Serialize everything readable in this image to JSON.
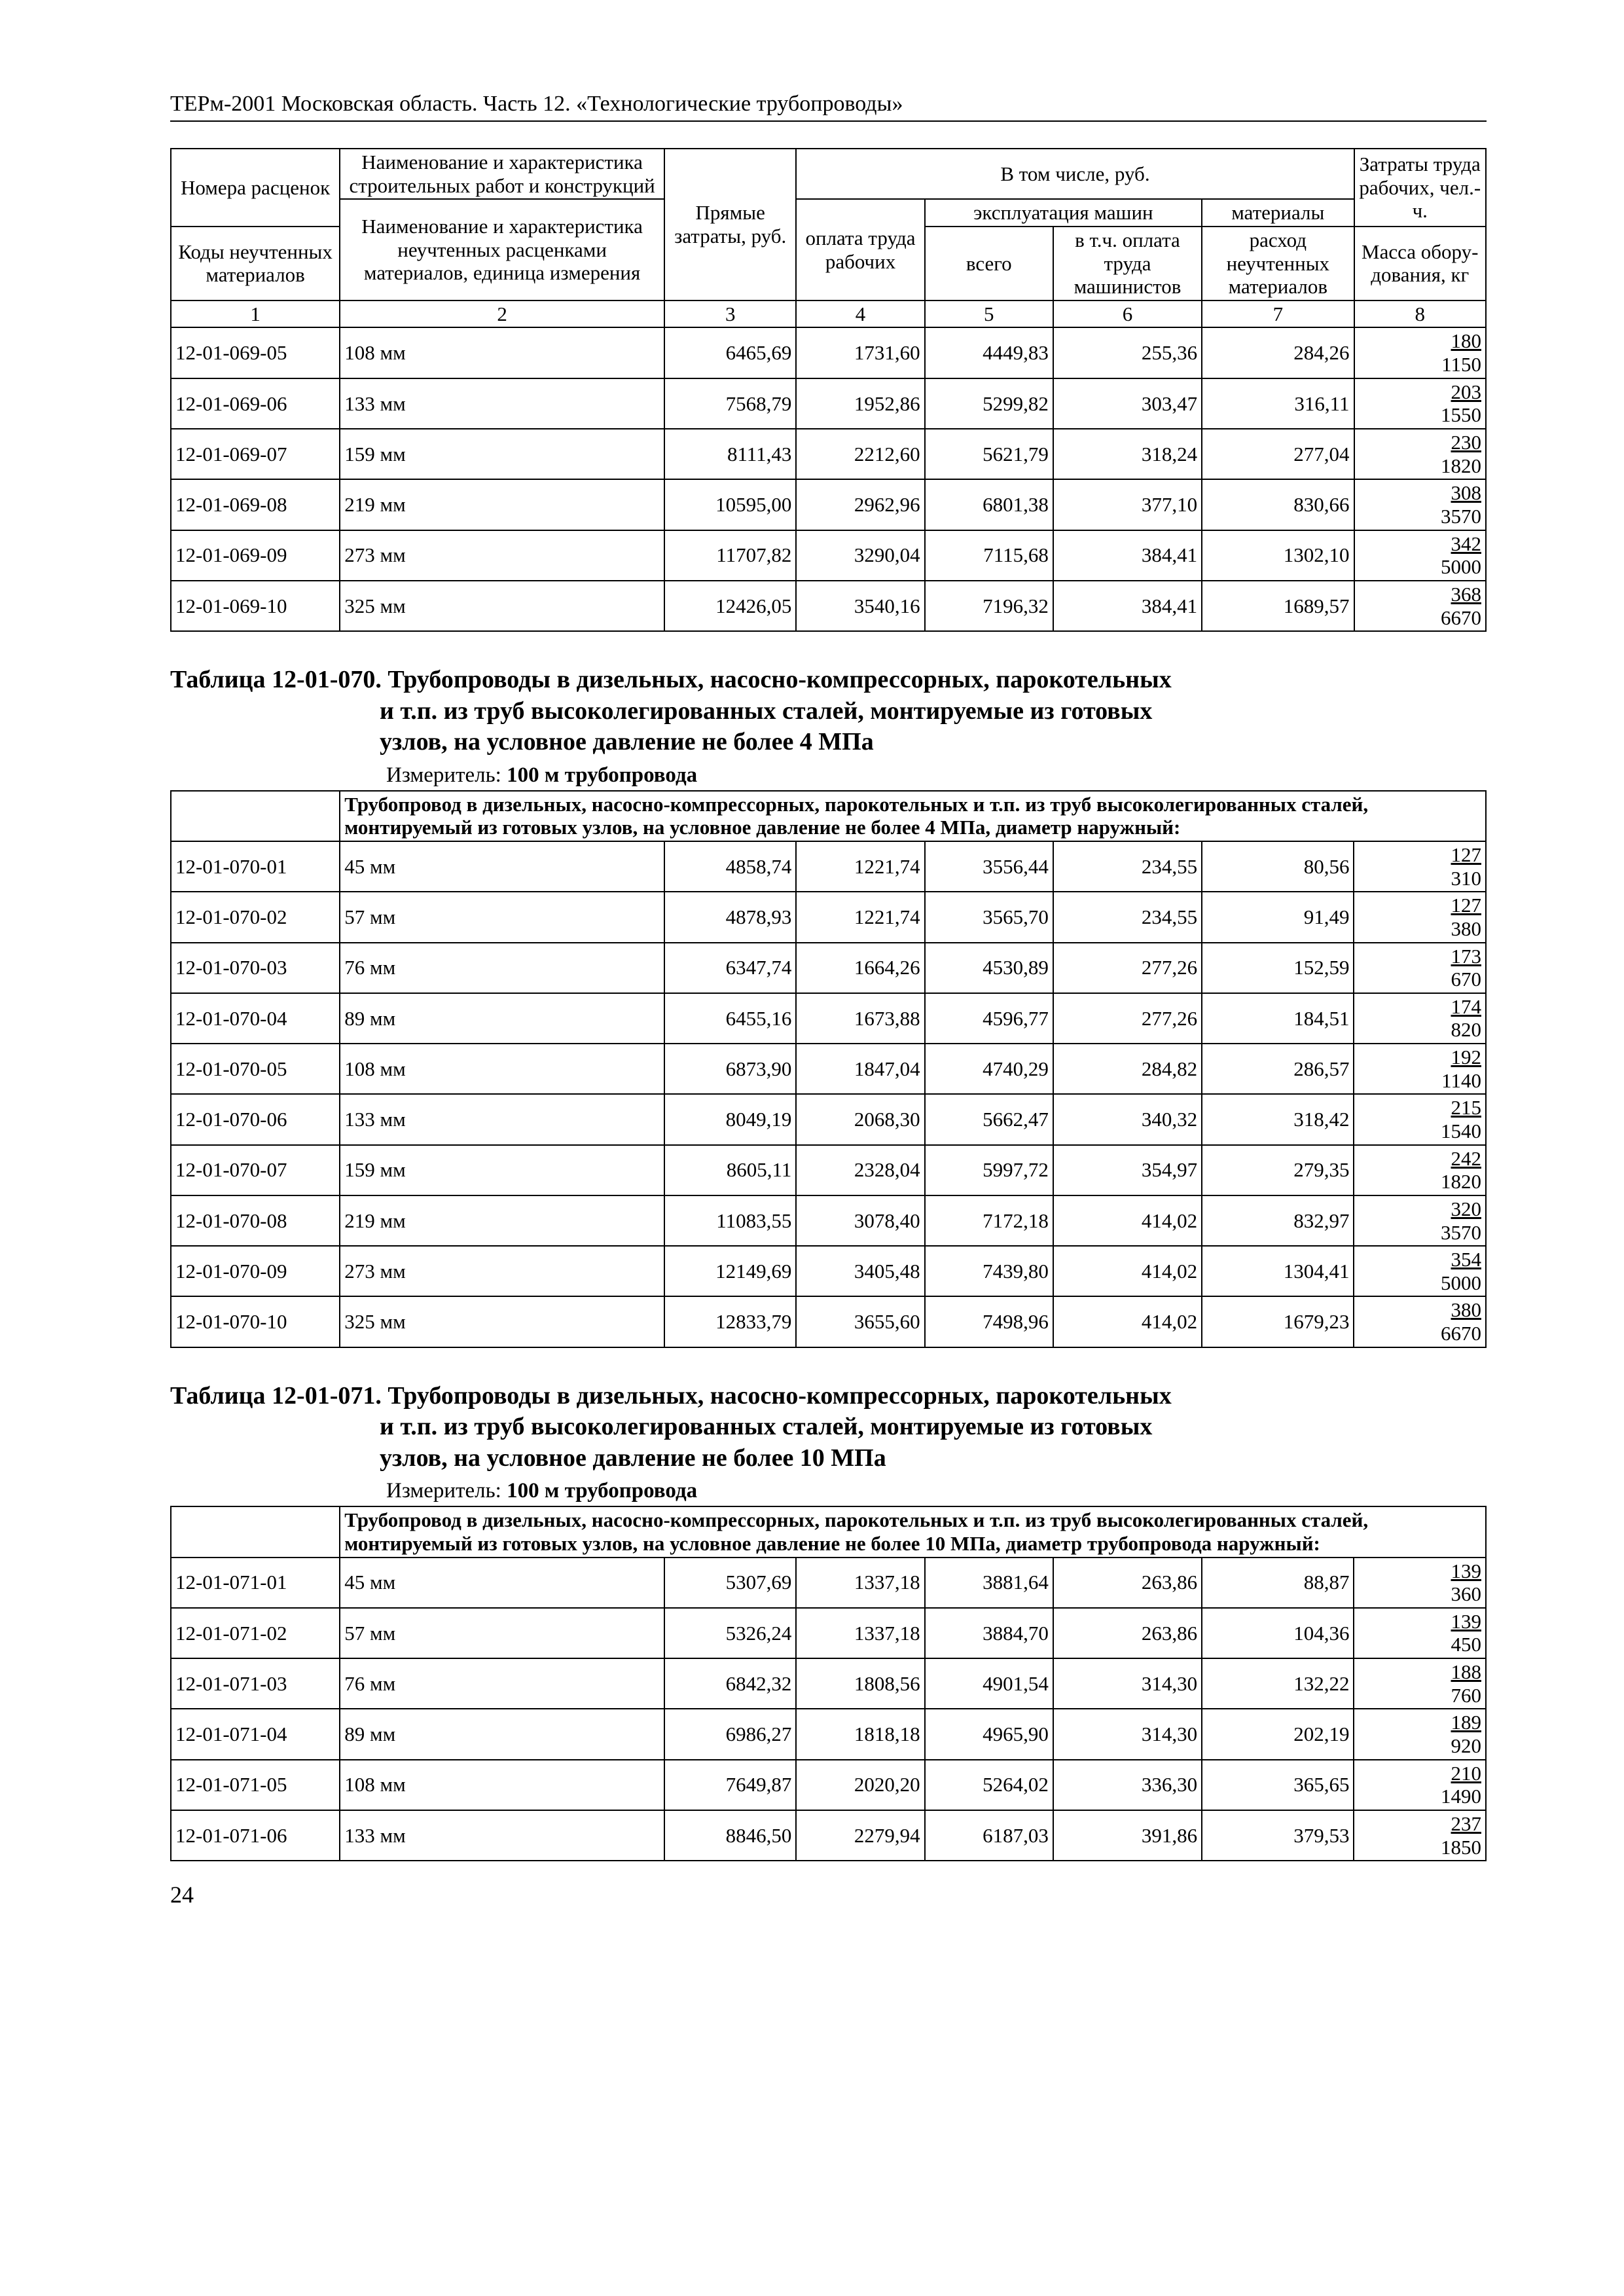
{
  "page": {
    "running_header": "ТЕРм-2001 Московская область. Часть 12. «Технологические трубопроводы»",
    "page_number": "24"
  },
  "header": {
    "h_code_top": "Номера расценок",
    "h_name_top": "Наименование и характеристика строительных работ и конструкций",
    "h_code_bot": "Коды неучтенных материалов",
    "h_name_bot": "Наименование и характеристика неучтенных расценками материалов, единица измерения",
    "h_direct": "Прямые затраты, руб.",
    "h_incl": "В том числе, руб.",
    "h_labor_pay": "оплата труда рабочих",
    "h_mach": "эксплуатация машин",
    "h_total": "всего",
    "h_mach_lab": "в т.ч. оплата труда машинистов",
    "h_mat": "материалы",
    "h_mat_un": "расход неучтенных материалов",
    "h_labor_top": "Затраты труда рабочих, чел.-ч.",
    "h_mass": "Масса обору- дования, кг",
    "col1": "1",
    "col2": "2",
    "col3": "3",
    "col4": "4",
    "col5": "5",
    "col6": "6",
    "col7": "7",
    "col8": "8"
  },
  "table069": {
    "rows": [
      {
        "code": "12-01-069-05",
        "name": "108 мм",
        "c3": "6465,69",
        "c4": "1731,60",
        "c5": "4449,83",
        "c6": "255,36",
        "c7": "284,26",
        "t": "180",
        "b": "1150"
      },
      {
        "code": "12-01-069-06",
        "name": "133 мм",
        "c3": "7568,79",
        "c4": "1952,86",
        "c5": "5299,82",
        "c6": "303,47",
        "c7": "316,11",
        "t": "203",
        "b": "1550"
      },
      {
        "code": "12-01-069-07",
        "name": "159 мм",
        "c3": "8111,43",
        "c4": "2212,60",
        "c5": "5621,79",
        "c6": "318,24",
        "c7": "277,04",
        "t": "230",
        "b": "1820"
      },
      {
        "code": "12-01-069-08",
        "name": "219 мм",
        "c3": "10595,00",
        "c4": "2962,96",
        "c5": "6801,38",
        "c6": "377,10",
        "c7": "830,66",
        "t": "308",
        "b": "3570"
      },
      {
        "code": "12-01-069-09",
        "name": "273 мм",
        "c3": "11707,82",
        "c4": "3290,04",
        "c5": "7115,68",
        "c6": "384,41",
        "c7": "1302,10",
        "t": "342",
        "b": "5000"
      },
      {
        "code": "12-01-069-10",
        "name": "325 мм",
        "c3": "12426,05",
        "c4": "3540,16",
        "c5": "7196,32",
        "c6": "384,41",
        "c7": "1689,57",
        "t": "368",
        "b": "6670"
      }
    ]
  },
  "sec070": {
    "title_first": "Таблица 12-01-070. Трубопроводы в дизельных, насосно-компрессорных, парокотельных",
    "title_rest1": "и т.п. из труб высоколегированных сталей, монтируемые из готовых",
    "title_rest2": "узлов, на условное давление не более 4 МПа",
    "measure_label": "Измеритель:",
    "measure_value": "100 м трубопровода",
    "desc": "Трубопровод в дизельных, насосно-компрессорных, парокотельных и т.п. из труб высоколегированных сталей, монтируемый из готовых узлов, на условное давление не более 4 МПа, диаметр наружный:",
    "rows": [
      {
        "code": "12-01-070-01",
        "name": "45 мм",
        "c3": "4858,74",
        "c4": "1221,74",
        "c5": "3556,44",
        "c6": "234,55",
        "c7": "80,56",
        "t": "127",
        "b": "310"
      },
      {
        "code": "12-01-070-02",
        "name": "57 мм",
        "c3": "4878,93",
        "c4": "1221,74",
        "c5": "3565,70",
        "c6": "234,55",
        "c7": "91,49",
        "t": "127",
        "b": "380"
      },
      {
        "code": "12-01-070-03",
        "name": "76 мм",
        "c3": "6347,74",
        "c4": "1664,26",
        "c5": "4530,89",
        "c6": "277,26",
        "c7": "152,59",
        "t": "173",
        "b": "670"
      },
      {
        "code": "12-01-070-04",
        "name": "89 мм",
        "c3": "6455,16",
        "c4": "1673,88",
        "c5": "4596,77",
        "c6": "277,26",
        "c7": "184,51",
        "t": "174",
        "b": "820"
      },
      {
        "code": "12-01-070-05",
        "name": "108 мм",
        "c3": "6873,90",
        "c4": "1847,04",
        "c5": "4740,29",
        "c6": "284,82",
        "c7": "286,57",
        "t": "192",
        "b": "1140"
      },
      {
        "code": "12-01-070-06",
        "name": "133 мм",
        "c3": "8049,19",
        "c4": "2068,30",
        "c5": "5662,47",
        "c6": "340,32",
        "c7": "318,42",
        "t": "215",
        "b": "1540"
      },
      {
        "code": "12-01-070-07",
        "name": "159 мм",
        "c3": "8605,11",
        "c4": "2328,04",
        "c5": "5997,72",
        "c6": "354,97",
        "c7": "279,35",
        "t": "242",
        "b": "1820"
      },
      {
        "code": "12-01-070-08",
        "name": "219 мм",
        "c3": "11083,55",
        "c4": "3078,40",
        "c5": "7172,18",
        "c6": "414,02",
        "c7": "832,97",
        "t": "320",
        "b": "3570"
      },
      {
        "code": "12-01-070-09",
        "name": "273 мм",
        "c3": "12149,69",
        "c4": "3405,48",
        "c5": "7439,80",
        "c6": "414,02",
        "c7": "1304,41",
        "t": "354",
        "b": "5000"
      },
      {
        "code": "12-01-070-10",
        "name": "325 мм",
        "c3": "12833,79",
        "c4": "3655,60",
        "c5": "7498,96",
        "c6": "414,02",
        "c7": "1679,23",
        "t": "380",
        "b": "6670"
      }
    ]
  },
  "sec071": {
    "title_first": "Таблица 12-01-071. Трубопроводы в дизельных, насосно-компрессорных, парокотельных",
    "title_rest1": "и т.п. из труб высоколегированных сталей, монтируемые из готовых",
    "title_rest2": "узлов, на условное давление не более 10 МПа",
    "measure_label": "Измеритель:",
    "measure_value": "100 м трубопровода",
    "desc": "Трубопровод в дизельных, насосно-компрессорных, парокотельных и т.п. из труб высоколегированных сталей, монтируемый из готовых узлов, на условное давление не более 10 МПа, диаметр трубопровода наружный:",
    "rows": [
      {
        "code": "12-01-071-01",
        "name": "45 мм",
        "c3": "5307,69",
        "c4": "1337,18",
        "c5": "3881,64",
        "c6": "263,86",
        "c7": "88,87",
        "t": "139",
        "b": "360"
      },
      {
        "code": "12-01-071-02",
        "name": "57 мм",
        "c3": "5326,24",
        "c4": "1337,18",
        "c5": "3884,70",
        "c6": "263,86",
        "c7": "104,36",
        "t": "139",
        "b": "450"
      },
      {
        "code": "12-01-071-03",
        "name": "76 мм",
        "c3": "6842,32",
        "c4": "1808,56",
        "c5": "4901,54",
        "c6": "314,30",
        "c7": "132,22",
        "t": "188",
        "b": "760"
      },
      {
        "code": "12-01-071-04",
        "name": "89 мм",
        "c3": "6986,27",
        "c4": "1818,18",
        "c5": "4965,90",
        "c6": "314,30",
        "c7": "202,19",
        "t": "189",
        "b": "920"
      },
      {
        "code": "12-01-071-05",
        "name": "108 мм",
        "c3": "7649,87",
        "c4": "2020,20",
        "c5": "5264,02",
        "c6": "336,30",
        "c7": "365,65",
        "t": "210",
        "b": "1490"
      },
      {
        "code": "12-01-071-06",
        "name": "133 мм",
        "c3": "8846,50",
        "c4": "2279,94",
        "c5": "6187,03",
        "c6": "391,86",
        "c7": "379,53",
        "t": "237",
        "b": "1850"
      }
    ]
  }
}
